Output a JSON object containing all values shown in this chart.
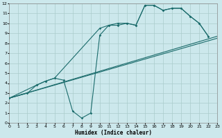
{
  "xlabel": "Humidex (Indice chaleur)",
  "background_color": "#cce8ec",
  "grid_color": "#aacccc",
  "line_color": "#1a6b6b",
  "xlim": [
    0,
    23
  ],
  "ylim": [
    0,
    12
  ],
  "xticks": [
    0,
    1,
    2,
    3,
    4,
    5,
    6,
    7,
    8,
    9,
    10,
    11,
    12,
    13,
    14,
    15,
    16,
    17,
    18,
    19,
    20,
    21,
    22,
    23
  ],
  "yticks": [
    0,
    1,
    2,
    3,
    4,
    5,
    6,
    7,
    8,
    9,
    10,
    11,
    12
  ],
  "line1_x": [
    0,
    23
  ],
  "line1_y": [
    2.5,
    8.5
  ],
  "line2_x": [
    0,
    23
  ],
  "line2_y": [
    2.5,
    8.7
  ],
  "line3_x": [
    0,
    2,
    3,
    4,
    5,
    6,
    7,
    8,
    9,
    10,
    11,
    12,
    13,
    14,
    15,
    16,
    17,
    18,
    19,
    20,
    21,
    22
  ],
  "line3_y": [
    2.5,
    3.0,
    3.8,
    4.2,
    4.5,
    4.3,
    1.2,
    0.5,
    1.0,
    8.8,
    9.8,
    9.8,
    10.0,
    9.8,
    11.8,
    11.8,
    11.3,
    11.5,
    11.5,
    10.7,
    10.0,
    8.7
  ],
  "line4_x": [
    0,
    3,
    4,
    5,
    10,
    11,
    12,
    13,
    14,
    15,
    16,
    17,
    18,
    19,
    20,
    21,
    22
  ],
  "line4_y": [
    2.5,
    3.8,
    4.2,
    4.5,
    9.5,
    9.8,
    10.0,
    10.0,
    9.8,
    11.8,
    11.8,
    11.3,
    11.5,
    11.5,
    10.7,
    10.0,
    8.7
  ]
}
